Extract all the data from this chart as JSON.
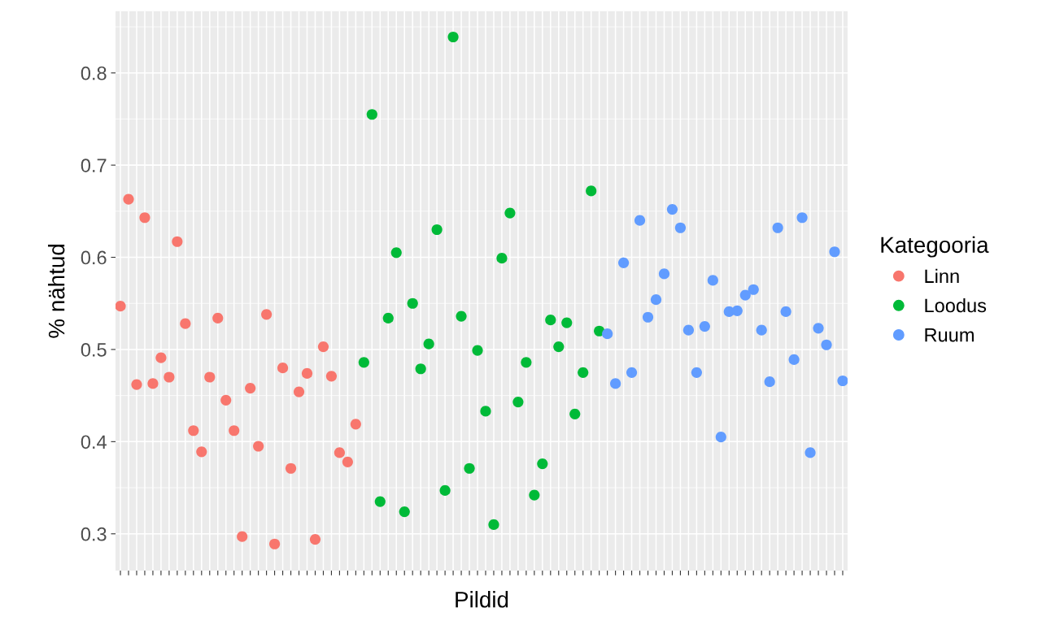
{
  "chart_data": {
    "type": "scatter",
    "xlabel": "Pildid",
    "ylabel": "% nähtud",
    "legend_title": "Kategooria",
    "legend": "right",
    "grid": true,
    "marker": "circle",
    "categories": [
      null,
      null,
      null,
      null,
      null,
      null,
      null,
      null,
      null,
      null,
      null,
      null,
      null,
      null,
      null,
      null,
      null,
      null,
      null,
      null,
      null,
      null,
      null,
      null,
      null,
      null,
      null,
      null,
      null,
      null,
      null,
      null,
      null,
      null,
      null,
      null,
      null,
      null,
      null,
      null,
      null,
      null,
      null,
      null,
      null,
      null,
      null,
      null,
      null,
      null,
      null,
      null,
      null,
      null,
      null,
      null,
      null,
      null,
      null,
      null,
      null,
      null,
      null,
      null,
      null,
      null,
      null,
      null,
      null,
      null,
      null,
      null,
      null,
      null,
      null,
      null,
      null,
      null,
      null,
      null,
      null,
      null,
      null,
      null,
      null,
      null,
      null,
      null,
      null,
      null
    ],
    "ylim": [
      0.26,
      0.867
    ],
    "yticks": [
      0.3,
      0.4,
      0.5,
      0.6,
      0.7,
      0.8
    ],
    "tick_labels": "y",
    "series": [
      {
        "name": "Linn",
        "color": "#f8766d",
        "values": [
          0.547,
          0.663,
          0.462,
          0.643,
          0.463,
          0.491,
          0.47,
          0.617,
          0.528,
          0.412,
          0.389,
          0.47,
          0.534,
          0.445,
          0.412,
          0.297,
          0.458,
          0.395,
          0.538,
          0.289,
          0.48,
          0.371,
          0.454,
          0.474,
          0.294,
          0.503,
          0.471,
          0.388,
          0.378,
          0.419,
          null,
          null,
          null,
          null,
          null,
          null,
          null,
          null,
          null,
          null,
          null,
          null,
          null,
          null,
          null,
          null,
          null,
          null,
          null,
          null,
          null,
          null,
          null,
          null,
          null,
          null,
          null,
          null,
          null,
          null,
          null,
          null,
          null,
          null,
          null,
          null,
          null,
          null,
          null,
          null,
          null,
          null,
          null,
          null,
          null,
          null,
          null,
          null,
          null,
          null,
          null,
          null,
          null,
          null,
          null,
          null,
          null,
          null,
          null,
          null
        ]
      },
      {
        "name": "Loodus",
        "color": "#00ba38",
        "values": [
          null,
          null,
          null,
          null,
          null,
          null,
          null,
          null,
          null,
          null,
          null,
          null,
          null,
          null,
          null,
          null,
          null,
          null,
          null,
          null,
          null,
          null,
          null,
          null,
          null,
          null,
          null,
          null,
          null,
          null,
          0.486,
          0.755,
          0.335,
          0.534,
          0.605,
          0.324,
          0.55,
          0.479,
          0.506,
          0.63,
          0.347,
          0.839,
          0.536,
          0.371,
          0.499,
          0.433,
          0.31,
          0.599,
          0.648,
          0.443,
          0.486,
          0.342,
          0.376,
          0.532,
          0.503,
          0.529,
          0.43,
          0.475,
          0.672,
          0.52,
          null,
          null,
          null,
          null,
          null,
          null,
          null,
          null,
          null,
          null,
          null,
          null,
          null,
          null,
          null,
          null,
          null,
          null,
          null,
          null,
          null,
          null,
          null,
          null,
          null,
          null,
          null,
          null,
          null,
          null
        ]
      },
      {
        "name": "Ruum",
        "color": "#619cff",
        "values": [
          null,
          null,
          null,
          null,
          null,
          null,
          null,
          null,
          null,
          null,
          null,
          null,
          null,
          null,
          null,
          null,
          null,
          null,
          null,
          null,
          null,
          null,
          null,
          null,
          null,
          null,
          null,
          null,
          null,
          null,
          null,
          null,
          null,
          null,
          null,
          null,
          null,
          null,
          null,
          null,
          null,
          null,
          null,
          null,
          null,
          null,
          null,
          null,
          null,
          null,
          null,
          null,
          null,
          null,
          null,
          null,
          null,
          null,
          null,
          null,
          0.517,
          0.463,
          0.594,
          0.475,
          0.64,
          0.535,
          0.554,
          0.582,
          0.652,
          0.632,
          0.521,
          0.475,
          0.525,
          0.575,
          0.405,
          0.541,
          0.542,
          0.559,
          0.565,
          0.521,
          0.465,
          0.632,
          0.541,
          0.489,
          0.643,
          0.388,
          0.523,
          0.505,
          0.606,
          0.466
        ]
      }
    ]
  }
}
